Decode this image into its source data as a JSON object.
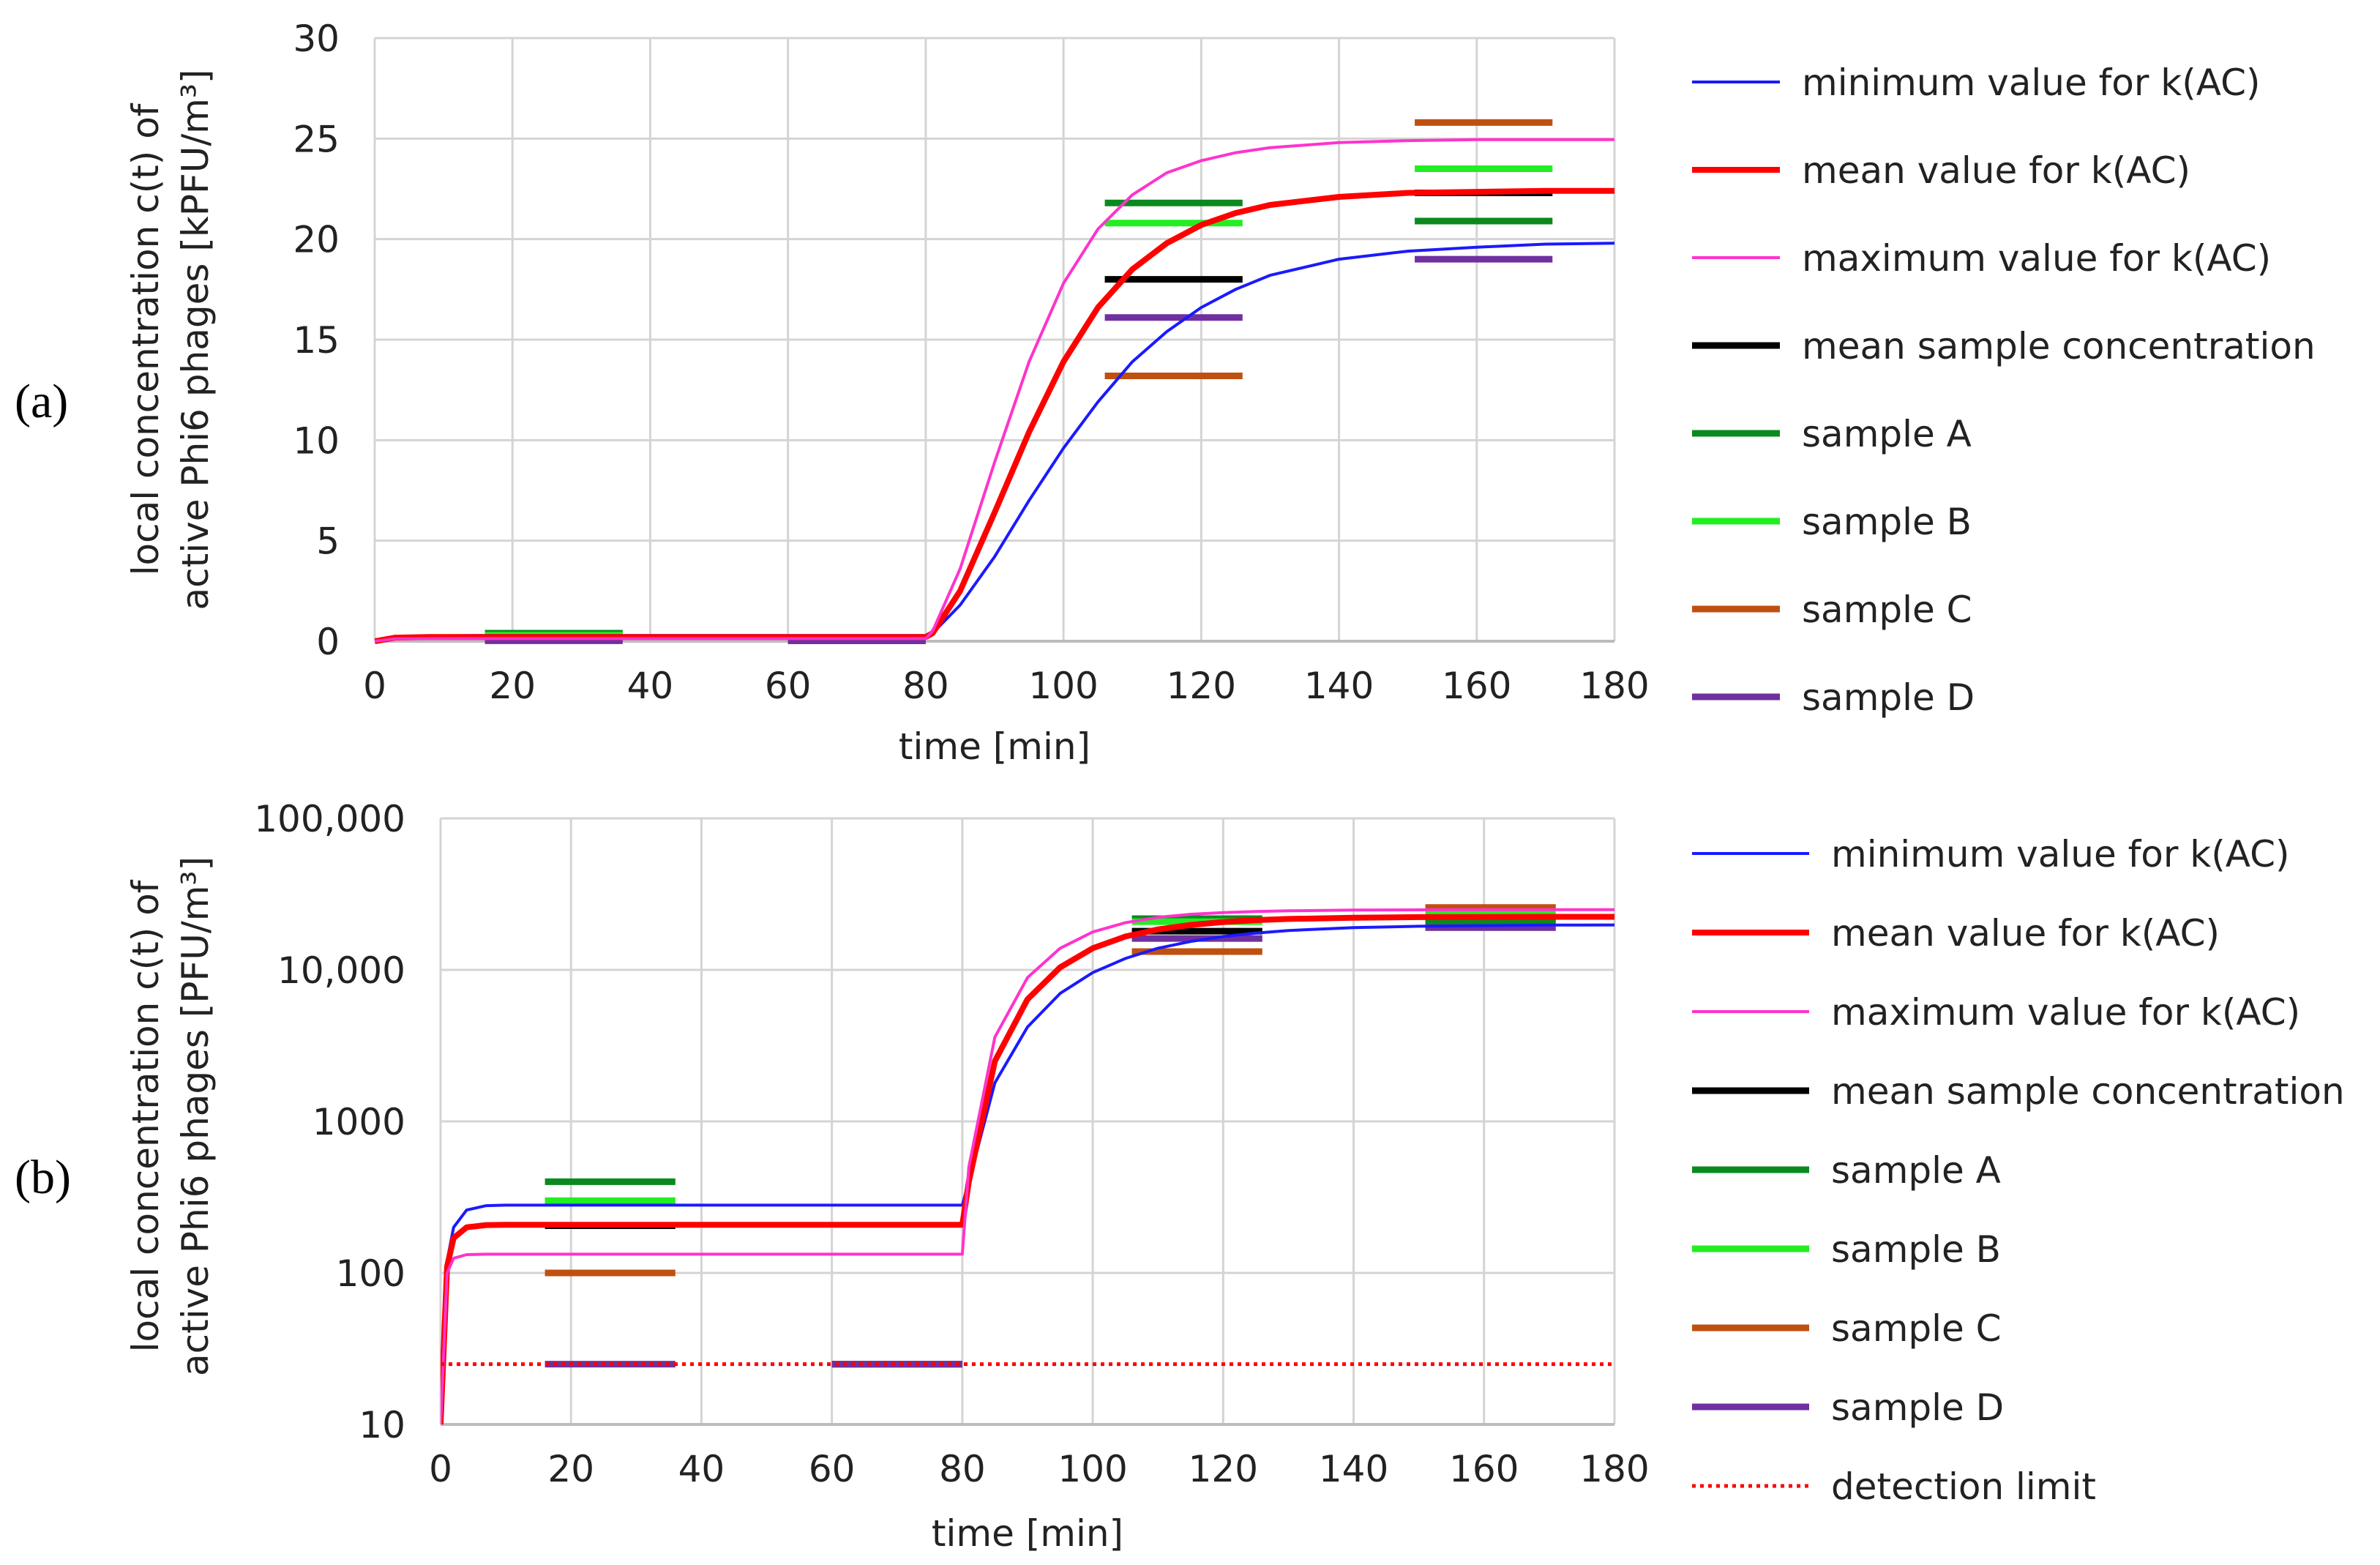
{
  "chart_data": [
    {
      "type": "line",
      "panel_label": "(a)",
      "xlabel": "time [min]",
      "ylabel_line1": "local concentration c(t) of",
      "ylabel_line2": "active Phi6 phages [kPFU/m³]",
      "xlim": [
        0,
        180
      ],
      "ylim": [
        0,
        30
      ],
      "x_ticks": [
        "0",
        "20",
        "40",
        "60",
        "80",
        "100",
        "120",
        "140",
        "160",
        "180"
      ],
      "y_ticks": [
        "0",
        "5",
        "10",
        "15",
        "20",
        "25",
        "30"
      ],
      "grid": true,
      "legend_position": "right",
      "series": [
        {
          "name": "minimum value for k(AC)",
          "color": "#1a1aff",
          "x": [
            0,
            3,
            8,
            15,
            30,
            60,
            80,
            81,
            85,
            90,
            95,
            100,
            105,
            110,
            115,
            120,
            125,
            130,
            140,
            150,
            160,
            170,
            180
          ],
          "y": [
            0,
            0.2,
            0.27,
            0.28,
            0.28,
            0.28,
            0.28,
            0.4,
            1.8,
            4.2,
            7.0,
            9.6,
            11.9,
            13.9,
            15.4,
            16.6,
            17.5,
            18.2,
            19.0,
            19.4,
            19.6,
            19.75,
            19.8
          ]
        },
        {
          "name": "mean value for k(AC)",
          "color": "#ff0000",
          "x": [
            0,
            3,
            8,
            15,
            30,
            60,
            80,
            81,
            85,
            90,
            95,
            100,
            105,
            110,
            115,
            120,
            125,
            130,
            140,
            150,
            160,
            170,
            180
          ],
          "y": [
            0,
            0.18,
            0.21,
            0.21,
            0.21,
            0.21,
            0.21,
            0.4,
            2.5,
            6.4,
            10.4,
            13.9,
            16.6,
            18.5,
            19.8,
            20.7,
            21.3,
            21.7,
            22.1,
            22.3,
            22.35,
            22.4,
            22.4
          ]
        },
        {
          "name": "maximum value for k(AC)",
          "color": "#ff33cc",
          "x": [
            0,
            3,
            8,
            15,
            30,
            60,
            80,
            81,
            85,
            90,
            95,
            100,
            105,
            110,
            115,
            120,
            125,
            130,
            140,
            150,
            160,
            170,
            180
          ],
          "y": [
            0,
            0.12,
            0.13,
            0.13,
            0.13,
            0.13,
            0.13,
            0.5,
            3.6,
            8.9,
            13.9,
            17.8,
            20.5,
            22.2,
            23.3,
            23.9,
            24.3,
            24.55,
            24.8,
            24.9,
            24.95,
            24.95,
            24.95
          ]
        },
        {
          "name": "mean sample concentration",
          "color": "#000000",
          "segments": [
            [
              16,
              36,
              0.2
            ],
            [
              60,
              80,
              0.025
            ],
            [
              106,
              126,
              18.0
            ],
            [
              151,
              171,
              22.3
            ]
          ]
        },
        {
          "name": "sample A",
          "color": "#0a8a1e",
          "segments": [
            [
              16,
              36,
              0.4
            ],
            [
              60,
              80,
              0.025
            ],
            [
              106,
              126,
              21.8
            ],
            [
              151,
              171,
              20.9
            ]
          ]
        },
        {
          "name": "sample B",
          "color": "#22ee22",
          "segments": [
            [
              16,
              36,
              0.3
            ],
            [
              60,
              80,
              0.025
            ],
            [
              106,
              126,
              20.8
            ],
            [
              151,
              171,
              23.5
            ]
          ]
        },
        {
          "name": "sample C",
          "color": "#c05010",
          "segments": [
            [
              16,
              36,
              0.1
            ],
            [
              60,
              80,
              0.025
            ],
            [
              106,
              126,
              13.2
            ],
            [
              151,
              171,
              25.8
            ]
          ]
        },
        {
          "name": "sample D",
          "color": "#7030a0",
          "segments": [
            [
              16,
              36,
              0.025
            ],
            [
              60,
              80,
              0.025
            ],
            [
              106,
              126,
              16.1
            ],
            [
              151,
              171,
              19.0
            ]
          ]
        }
      ]
    },
    {
      "type": "line",
      "panel_label": "(b)",
      "xlabel": "time [min]",
      "ylabel_line1": "local concentration c(t) of",
      "ylabel_line2": "active Phi6 phages [PFU/m³]",
      "xlim": [
        0,
        180
      ],
      "ylim": [
        10,
        100000
      ],
      "y_scale": "log",
      "x_ticks": [
        "0",
        "20",
        "40",
        "60",
        "80",
        "100",
        "120",
        "140",
        "160",
        "180"
      ],
      "y_ticks": [
        "10",
        "100",
        "1000",
        "10,000",
        "100,000"
      ],
      "grid": true,
      "legend_position": "right",
      "series": [
        {
          "name": "minimum value for k(AC)",
          "color": "#1a1aff",
          "x": [
            0,
            1,
            2,
            4,
            7,
            10,
            30,
            60,
            80,
            81,
            85,
            90,
            95,
            100,
            105,
            110,
            115,
            120,
            125,
            130,
            140,
            150,
            160,
            170,
            180
          ],
          "y": [
            10,
            120,
            200,
            260,
            278,
            280,
            280,
            280,
            280,
            400,
            1800,
            4200,
            7000,
            9600,
            11900,
            13900,
            15400,
            16600,
            17500,
            18200,
            19000,
            19400,
            19600,
            19750,
            19800
          ]
        },
        {
          "name": "mean value for k(AC)",
          "color": "#ff0000",
          "x": [
            0,
            1,
            2,
            4,
            7,
            10,
            30,
            60,
            80,
            81,
            85,
            90,
            95,
            100,
            105,
            110,
            115,
            120,
            125,
            130,
            140,
            150,
            160,
            170,
            180
          ],
          "y": [
            10,
            110,
            170,
            200,
            207,
            208,
            208,
            208,
            208,
            400,
            2500,
            6400,
            10400,
            13900,
            16600,
            18500,
            19800,
            20700,
            21300,
            21700,
            22100,
            22300,
            22350,
            22400,
            22400
          ]
        },
        {
          "name": "maximum value for k(AC)",
          "color": "#ff33cc",
          "x": [
            0,
            1,
            2,
            4,
            7,
            10,
            30,
            60,
            80,
            81,
            85,
            90,
            95,
            100,
            105,
            110,
            115,
            120,
            125,
            130,
            140,
            150,
            160,
            170,
            180
          ],
          "y": [
            10,
            100,
            125,
            132,
            133,
            133,
            133,
            133,
            133,
            500,
            3600,
            8900,
            13900,
            17800,
            20500,
            22200,
            23300,
            23900,
            24300,
            24550,
            24800,
            24900,
            24950,
            24950,
            24950
          ]
        },
        {
          "name": "mean sample concentration",
          "color": "#000000",
          "segments": [
            [
              16,
              36,
              205
            ],
            [
              60,
              80,
              25
            ],
            [
              106,
              126,
              18000
            ],
            [
              151,
              171,
              22300
            ]
          ]
        },
        {
          "name": "sample A",
          "color": "#0a8a1e",
          "segments": [
            [
              16,
              36,
              400
            ],
            [
              60,
              80,
              25
            ],
            [
              106,
              126,
              21800
            ],
            [
              151,
              171,
              20900
            ]
          ]
        },
        {
          "name": "sample B",
          "color": "#22ee22",
          "segments": [
            [
              16,
              36,
              300
            ],
            [
              60,
              80,
              25
            ],
            [
              106,
              126,
              20800
            ],
            [
              151,
              171,
              23500
            ]
          ]
        },
        {
          "name": "sample C",
          "color": "#c05010",
          "segments": [
            [
              16,
              36,
              100
            ],
            [
              60,
              80,
              25
            ],
            [
              106,
              126,
              13200
            ],
            [
              151,
              171,
              25800
            ]
          ]
        },
        {
          "name": "sample D",
          "color": "#7030a0",
          "segments": [
            [
              16,
              36,
              25
            ],
            [
              60,
              80,
              25
            ],
            [
              106,
              126,
              16100
            ],
            [
              151,
              171,
              19000
            ]
          ]
        },
        {
          "name": "detection limit",
          "color": "#ff0000",
          "dotted": true,
          "x": [
            0,
            180
          ],
          "y": [
            25,
            25
          ]
        }
      ]
    }
  ]
}
